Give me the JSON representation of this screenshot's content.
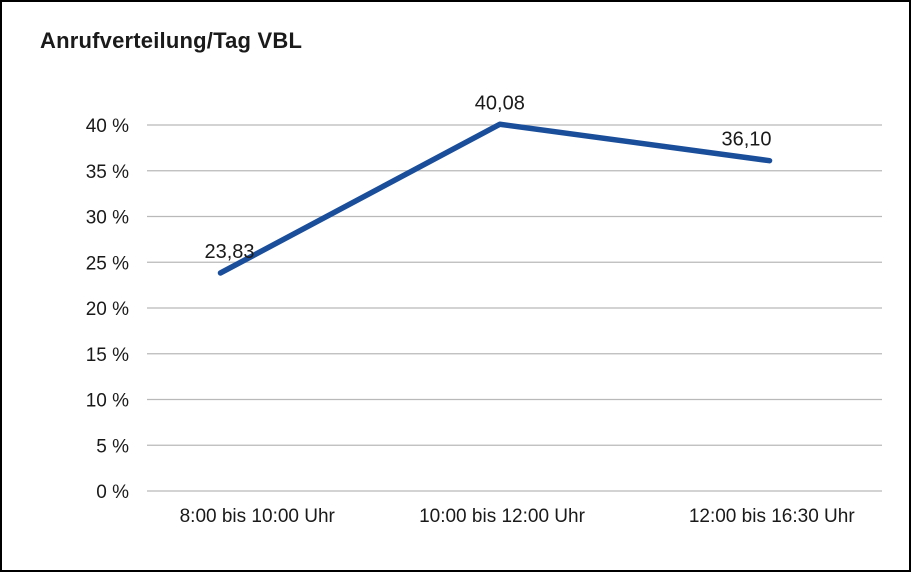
{
  "title": "Anrufverteilung/Tag VBL",
  "chart_data": {
    "type": "line",
    "title": "Anrufverteilung/Tag VBL",
    "categories": [
      "8:00 bis 10:00 Uhr",
      "10:00 bis 12:00 Uhr",
      "12:00 bis 16:30 Uhr"
    ],
    "values": [
      23.83,
      40.08,
      36.1
    ],
    "value_labels": [
      "23,83",
      "40,08",
      "36,10"
    ],
    "xlabel": "",
    "ylabel": "",
    "ylim": [
      0,
      40
    ],
    "ytick_step": 5,
    "ytick_suffix": " %",
    "ytick_labels": [
      "0 %",
      "5 %",
      "10 %",
      "15 %",
      "20 %",
      "25 %",
      "30 %",
      "35 %",
      "40 %"
    ],
    "grid": true,
    "legend": "none",
    "line_color": "#1a4e9b",
    "grid_color": "#b9b9b9",
    "text_color": "#1a1a1a",
    "border_color": "#000000"
  }
}
